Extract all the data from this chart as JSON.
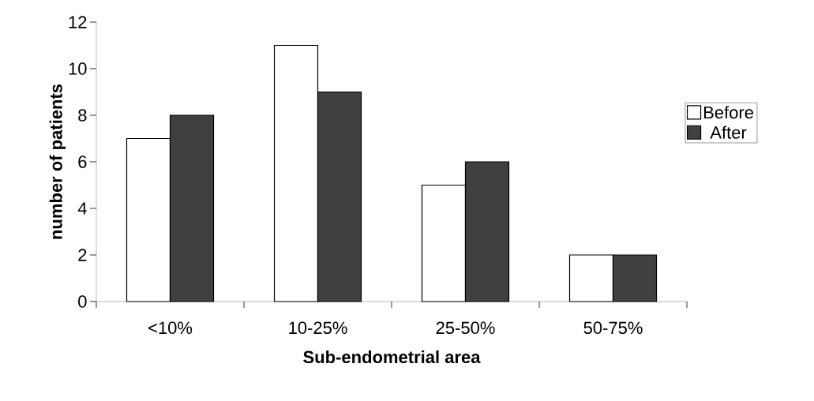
{
  "chart_data": {
    "type": "bar",
    "xlabel": "Sub-endometrial area",
    "ylabel": "number of patients",
    "categories": [
      "<10%",
      "10-25%",
      "25-50%",
      "50-75%"
    ],
    "series": [
      {
        "name": "Before",
        "color": "#ffffff",
        "values": [
          7,
          11,
          5,
          2
        ]
      },
      {
        "name": "After",
        "color": "#404040",
        "values": [
          8,
          9,
          6,
          2
        ]
      }
    ],
    "ylim": [
      0,
      12
    ],
    "yticks": [
      0,
      2,
      4,
      6,
      8,
      10,
      12
    ],
    "grid": false,
    "legend": "right"
  }
}
